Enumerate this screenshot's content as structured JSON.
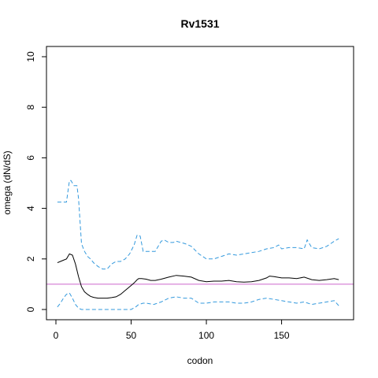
{
  "chart_data": {
    "type": "line",
    "title": "Rv1531",
    "xlabel": "codon",
    "ylabel": "omega (dN/dS)",
    "xlim": [
      0,
      190
    ],
    "ylim": [
      0,
      10
    ],
    "x_ticks": [
      0,
      50,
      100,
      150
    ],
    "y_ticks": [
      0,
      2,
      4,
      6,
      8,
      10
    ],
    "reference_line": {
      "y": 1,
      "color": "#cc66cc"
    },
    "grid": false,
    "series": [
      {
        "role": "estimate",
        "color": "#000000",
        "dash": "solid",
        "x": [
          1,
          3,
          5,
          7,
          9,
          11,
          13,
          15,
          17,
          19,
          21,
          23,
          25,
          28,
          31,
          34,
          37,
          40,
          43,
          46,
          49,
          52,
          54,
          55,
          57,
          60,
          63,
          66,
          70,
          75,
          80,
          85,
          90,
          95,
          100,
          105,
          110,
          115,
          120,
          125,
          130,
          135,
          140,
          142,
          145,
          150,
          155,
          160,
          165,
          170,
          175,
          180,
          185,
          188
        ],
        "y": [
          1.85,
          1.9,
          1.95,
          2.0,
          2.2,
          2.15,
          1.8,
          1.3,
          0.9,
          0.7,
          0.6,
          0.52,
          0.48,
          0.45,
          0.45,
          0.45,
          0.47,
          0.5,
          0.6,
          0.75,
          0.9,
          1.05,
          1.18,
          1.22,
          1.22,
          1.2,
          1.15,
          1.15,
          1.2,
          1.28,
          1.35,
          1.32,
          1.28,
          1.15,
          1.1,
          1.12,
          1.12,
          1.15,
          1.1,
          1.08,
          1.1,
          1.15,
          1.25,
          1.32,
          1.3,
          1.25,
          1.25,
          1.22,
          1.28,
          1.18,
          1.15,
          1.18,
          1.22,
          1.18
        ]
      },
      {
        "role": "upper",
        "color": "#3399dd",
        "dash": "dashed",
        "x": [
          1,
          4,
          7,
          9,
          10,
          12,
          14,
          15,
          16,
          17,
          19,
          21,
          23,
          25,
          28,
          31,
          34,
          37,
          40,
          43,
          46,
          49,
          52,
          54,
          56,
          57,
          58,
          60,
          63,
          66,
          70,
          72,
          75,
          78,
          80,
          83,
          86,
          90,
          95,
          100,
          105,
          110,
          115,
          120,
          125,
          130,
          135,
          140,
          145,
          148,
          150,
          155,
          160,
          165,
          167,
          170,
          175,
          180,
          185,
          188
        ],
        "y": [
          4.25,
          4.25,
          4.25,
          5.1,
          5.1,
          4.9,
          4.9,
          4.4,
          3.5,
          2.6,
          2.3,
          2.1,
          2.0,
          1.85,
          1.7,
          1.6,
          1.6,
          1.8,
          1.9,
          1.9,
          2.0,
          2.2,
          2.55,
          2.95,
          2.9,
          2.6,
          2.3,
          2.3,
          2.3,
          2.3,
          2.7,
          2.75,
          2.65,
          2.65,
          2.7,
          2.65,
          2.6,
          2.5,
          2.2,
          2.0,
          2.0,
          2.1,
          2.2,
          2.15,
          2.2,
          2.25,
          2.3,
          2.4,
          2.45,
          2.55,
          2.4,
          2.45,
          2.45,
          2.4,
          2.75,
          2.45,
          2.4,
          2.5,
          2.7,
          2.8
        ]
      },
      {
        "role": "lower",
        "color": "#3399dd",
        "dash": "dashed",
        "x": [
          1,
          3,
          5,
          7,
          9,
          11,
          13,
          15,
          17,
          20,
          25,
          30,
          35,
          40,
          45,
          50,
          53,
          55,
          58,
          60,
          65,
          70,
          75,
          80,
          85,
          90,
          95,
          100,
          105,
          110,
          115,
          120,
          125,
          130,
          135,
          140,
          145,
          150,
          155,
          160,
          165,
          170,
          175,
          180,
          185,
          188
        ],
        "y": [
          0.1,
          0.25,
          0.45,
          0.6,
          0.65,
          0.45,
          0.2,
          0.05,
          0.0,
          0.0,
          0.0,
          0.0,
          0.0,
          0.0,
          0.0,
          0.0,
          0.1,
          0.2,
          0.25,
          0.25,
          0.2,
          0.3,
          0.45,
          0.5,
          0.45,
          0.45,
          0.25,
          0.25,
          0.3,
          0.3,
          0.3,
          0.25,
          0.25,
          0.3,
          0.4,
          0.45,
          0.4,
          0.35,
          0.3,
          0.25,
          0.3,
          0.2,
          0.25,
          0.3,
          0.35,
          0.15
        ]
      }
    ]
  }
}
